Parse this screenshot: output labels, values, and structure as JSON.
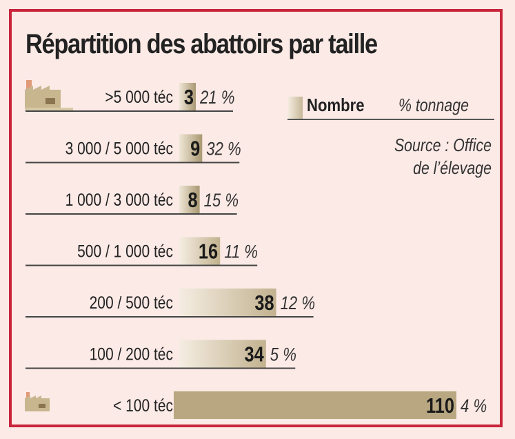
{
  "title": "Répartition des abattoirs par taille",
  "legend": {
    "count_label": "Nombre",
    "share_label": "% tonnage"
  },
  "source": {
    "line1": "Source : Office",
    "line2": "de l’élevage"
  },
  "icons": [
    "factory-icon"
  ],
  "colors": {
    "frame": "#c8243a",
    "background": "#fbeae6",
    "bar_light": "#f5ede2",
    "bar_dark": "#b4a47f"
  },
  "chart_data": {
    "type": "bar",
    "orientation": "horizontal",
    "title": "Répartition des abattoirs par taille",
    "categories": [
      ">5 000 téc",
      "3 000 / 5 000 téc",
      "1 000 / 3 000 téc",
      "500 / 1 000 téc",
      "200 / 500 téc",
      "100 / 200 téc",
      "< 100 téc"
    ],
    "series": [
      {
        "name": "Nombre",
        "values": [
          3,
          9,
          8,
          16,
          38,
          34,
          110
        ]
      },
      {
        "name": "% tonnage",
        "values": [
          21,
          32,
          15,
          11,
          12,
          5,
          4
        ]
      }
    ],
    "share_labels": [
      "21 %",
      "32 %",
      "15 %",
      "11 %",
      "12 %",
      "5 %",
      "4 %"
    ],
    "source": "Source : Office de l’élevage"
  }
}
